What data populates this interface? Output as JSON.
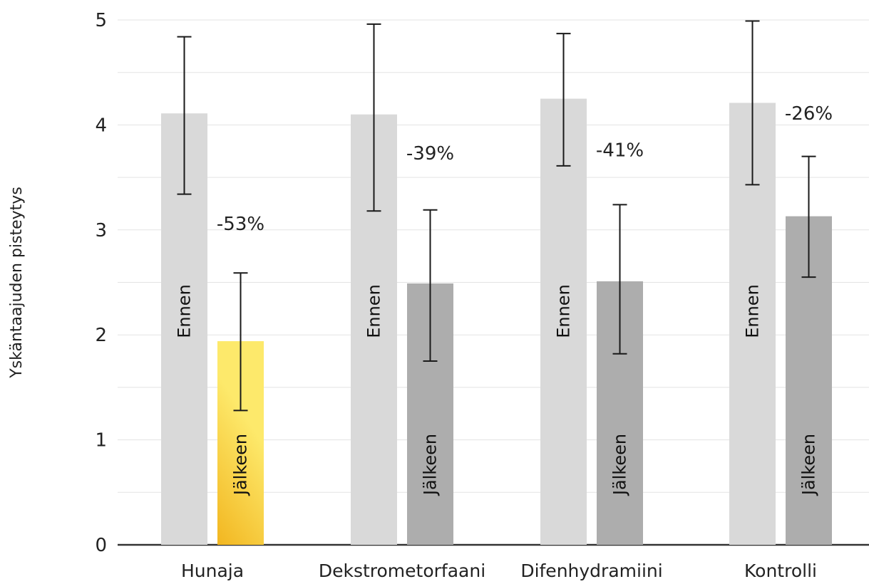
{
  "chart_data": {
    "type": "bar",
    "ylabel": "Yskäntaajuden pisteytys",
    "ylim": [
      0,
      5
    ],
    "yticks": [
      0,
      1,
      2,
      3,
      4,
      5
    ],
    "grid": true,
    "categories": [
      "Hunaja",
      "Dekstrometorfaani",
      "Difenhydramiini",
      "Kontrolli"
    ],
    "series": [
      {
        "name": "Ennen",
        "values": [
          4.11,
          4.1,
          4.25,
          4.21
        ],
        "err_low": [
          3.34,
          3.18,
          3.61,
          3.43
        ],
        "err_high": [
          4.84,
          4.96,
          4.87,
          4.99
        ],
        "color": "#d9d9d9"
      },
      {
        "name": "Jälkeen",
        "values": [
          1.94,
          2.49,
          2.51,
          3.13
        ],
        "err_low": [
          1.28,
          1.75,
          1.82,
          2.55
        ],
        "err_high": [
          2.59,
          3.19,
          3.24,
          3.7
        ],
        "color": "#adadad",
        "highlight_color": [
          "#f2b620",
          "#fde96b"
        ]
      }
    ],
    "change_labels": [
      "-53%",
      "-39%",
      "-41%",
      "-26%"
    ],
    "change_label_y": [
      3.0,
      3.67,
      3.7,
      4.05
    ]
  }
}
